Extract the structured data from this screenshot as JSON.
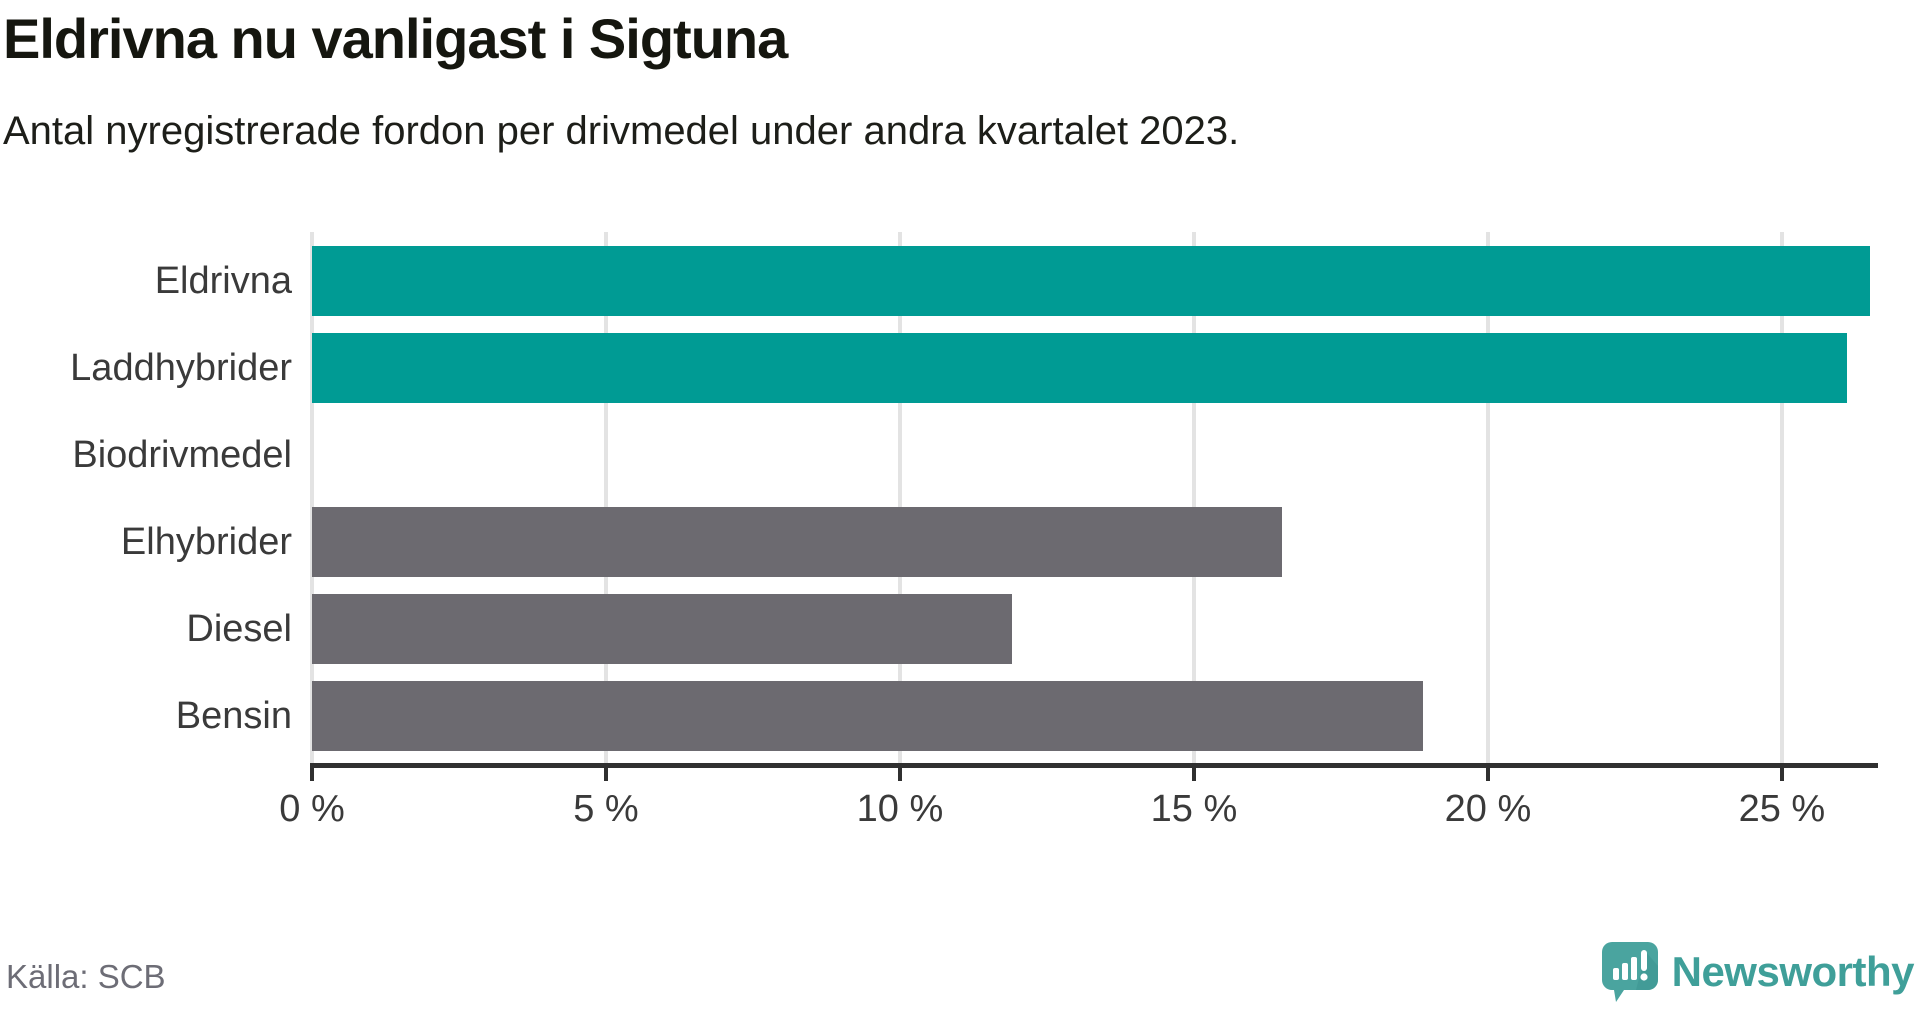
{
  "header": {
    "title": "Eldrivna nu vanligast i Sigtuna",
    "subtitle": "Antal nyregistrerade fordon per drivmedel under andra kvartalet 2023."
  },
  "chart_data": {
    "type": "bar",
    "orientation": "horizontal",
    "title": "Eldrivna nu vanligast i Sigtuna",
    "subtitle": "Antal nyregistrerade fordon per drivmedel under andra kvartalet 2023.",
    "categories": [
      "Eldrivna",
      "Laddhybrider",
      "Biodrivmedel",
      "Elhybrider",
      "Diesel",
      "Bensin"
    ],
    "values": [
      26.5,
      26.1,
      0,
      16.5,
      11.9,
      18.9
    ],
    "unit": "%",
    "bar_color_keys": [
      "teal",
      "teal",
      "teal",
      "gray",
      "gray",
      "gray"
    ],
    "colors": {
      "teal": "#009b94",
      "gray": "#6c6a70"
    },
    "xlim": [
      0,
      26.6
    ],
    "x_ticks": [
      0,
      5,
      10,
      15,
      20,
      25
    ],
    "x_tick_labels": [
      "0 %",
      "5 %",
      "10 %",
      "15 %",
      "20 %",
      "25 %"
    ],
    "grid": true,
    "legend": false,
    "gridline_color": "#e3e3e3",
    "axis_color": "#303030"
  },
  "footer": {
    "source": "Källa: SCB",
    "brand": "Newsworthy"
  }
}
